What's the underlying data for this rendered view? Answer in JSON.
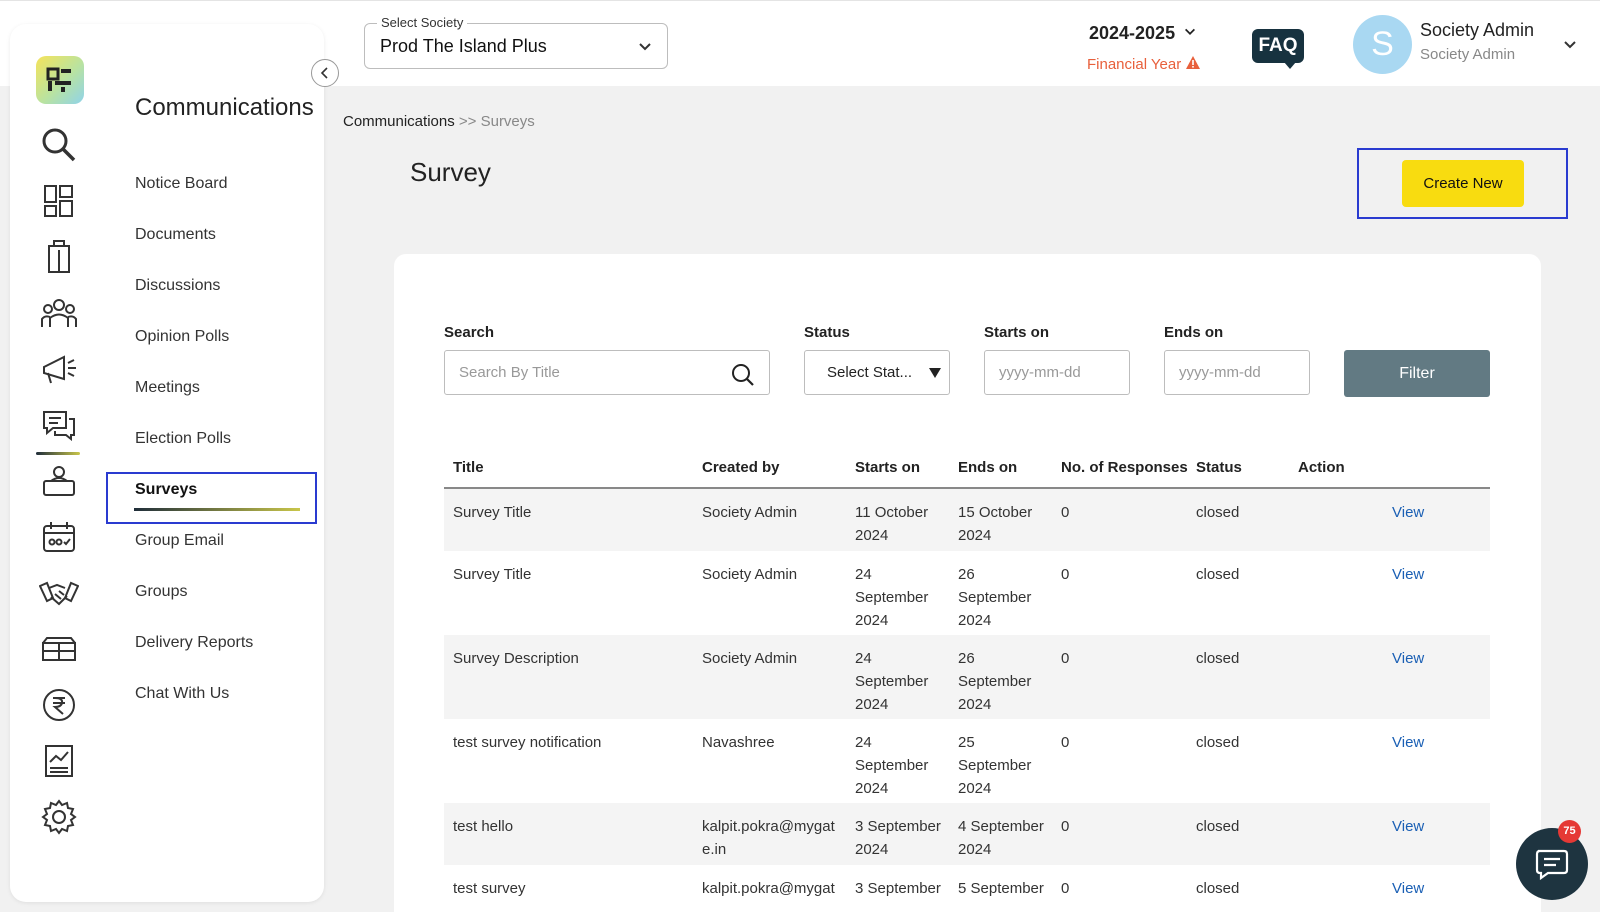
{
  "header": {
    "society_legend": "Select Society",
    "society_value": "Prod The Island Plus",
    "year": "2024-2025",
    "financial_year_label": "Financial Year",
    "faq_label": "FAQ",
    "avatar_initial": "S",
    "user_name": "Society Admin",
    "user_role": "Society Admin"
  },
  "sidebar": {
    "section_title": "Communications",
    "items": [
      {
        "label": "Notice Board"
      },
      {
        "label": "Documents"
      },
      {
        "label": "Discussions"
      },
      {
        "label": "Opinion Polls"
      },
      {
        "label": "Meetings"
      },
      {
        "label": "Election Polls"
      },
      {
        "label": "Surveys",
        "active": true
      },
      {
        "label": "Group Email"
      },
      {
        "label": "Groups"
      },
      {
        "label": "Delivery Reports"
      },
      {
        "label": "Chat With Us"
      }
    ],
    "rail_icons": [
      "search-icon",
      "dashboard-icon",
      "building-icon",
      "residents-icon",
      "megaphone-icon",
      "chat-bubbles-icon",
      "helpdesk-icon",
      "calendar-icon",
      "handshake-icon",
      "amenities-icon",
      "rupee-icon",
      "reports-icon",
      "settings-icon"
    ]
  },
  "breadcrumb": {
    "root": "Communications",
    "separator": ">>",
    "current": "Surveys"
  },
  "page": {
    "title": "Survey",
    "create_label": "Create New"
  },
  "filters": {
    "search_label": "Search",
    "search_placeholder": "Search By Title",
    "status_label": "Status",
    "status_value": "Select Stat...",
    "starts_label": "Starts on",
    "starts_placeholder": "yyyy-mm-dd",
    "ends_label": "Ends on",
    "ends_placeholder": "yyyy-mm-dd",
    "filter_button": "Filter"
  },
  "table": {
    "headers": [
      "Title",
      "Created by",
      "Starts on",
      "Ends on",
      "No. of Responses",
      "Status",
      "Action"
    ],
    "rows": [
      {
        "title": "Survey Title",
        "created_by": "Society Admin",
        "starts": "11 October 2024",
        "ends": "15 October 2024",
        "responses": "0",
        "status": "closed",
        "action": "View"
      },
      {
        "title": "Survey Title",
        "created_by": "Society Admin",
        "starts": "24 September 2024",
        "ends": "26 September 2024",
        "responses": "0",
        "status": "closed",
        "action": "View"
      },
      {
        "title": "Survey Description",
        "created_by": "Society Admin",
        "starts": "24 September 2024",
        "ends": "26 September 2024",
        "responses": "0",
        "status": "closed",
        "action": "View"
      },
      {
        "title": "test survey notification",
        "created_by": "Navashree",
        "starts": "24 September 2024",
        "ends": "25 September 2024",
        "responses": "0",
        "status": "closed",
        "action": "View"
      },
      {
        "title": "test hello",
        "created_by": "kalpit.pokra@mygate.in",
        "starts": "3 September 2024",
        "ends": "4 September 2024",
        "responses": "0",
        "status": "closed",
        "action": "View"
      },
      {
        "title": "test survey",
        "created_by": "kalpit.pokra@mygat",
        "starts": "3 September",
        "ends": "5 September",
        "responses": "0",
        "status": "closed",
        "action": "View"
      }
    ]
  },
  "chat": {
    "badge_count": "75"
  },
  "colors": {
    "accent_yellow": "#f8dc10",
    "filter_button": "#627a83",
    "link_blue": "#1a5fb4",
    "warning_orange": "#e8603c",
    "dark_navy": "#17323f"
  }
}
